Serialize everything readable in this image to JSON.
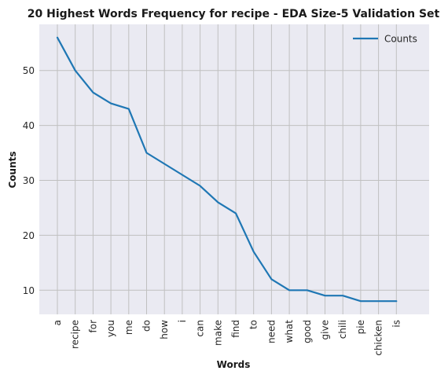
{
  "chart_data": {
    "type": "line",
    "title": "20 Highest Words Frequency for recipe - EDA Size-5 Validation Set",
    "xlabel": "Words",
    "ylabel": "Counts",
    "categories": [
      "a",
      "recipe",
      "for",
      "you",
      "me",
      "do",
      "how",
      "i",
      "can",
      "make",
      "find",
      "to",
      "need",
      "what",
      "good",
      "give",
      "chili",
      "pie",
      "chicken",
      "is"
    ],
    "series": [
      {
        "name": "Counts",
        "values": [
          56,
          50,
          46,
          44,
          43,
          35,
          33,
          31,
          29,
          26,
          24,
          17,
          12,
          10,
          10,
          9,
          9,
          8,
          8,
          8
        ]
      }
    ],
    "yticks": [
      10,
      20,
      30,
      40,
      50
    ],
    "ylim": [
      5.6,
      58.4
    ],
    "grid": true,
    "legend_position": "top-right",
    "colors": {
      "line": "#1f77b4",
      "plot_background": "#eaeaf2",
      "grid": "#c0c0c0"
    }
  }
}
